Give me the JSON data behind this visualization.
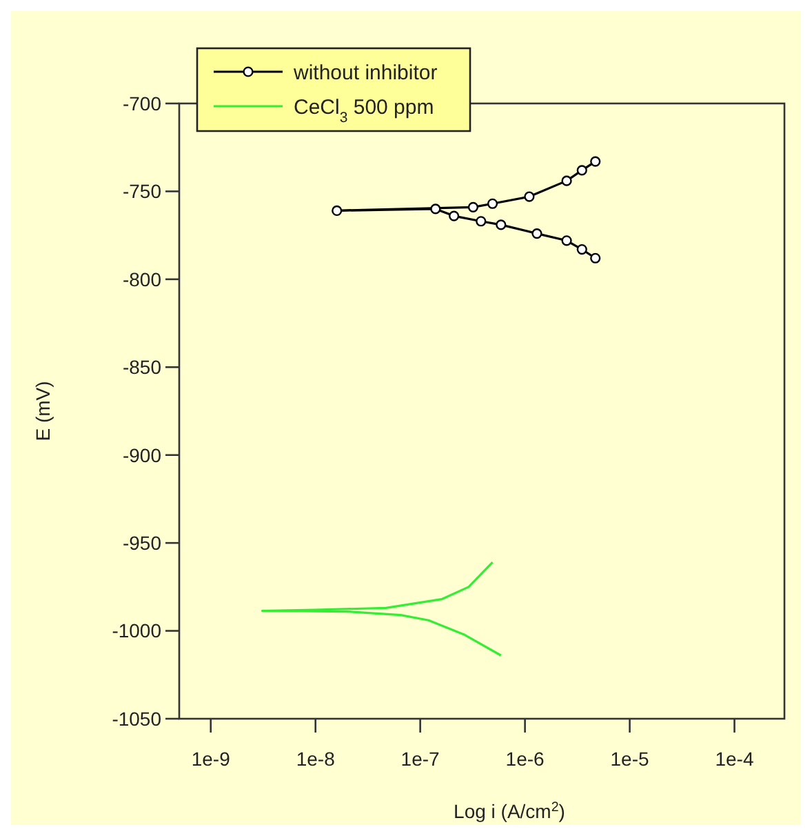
{
  "chart_data": {
    "type": "line",
    "xlabel": "Log i (A/cm$^{2}$)",
    "ylabel": "E (mV)",
    "log": "x",
    "xlim": [
      5e-10,
      0.0003
    ],
    "ylim": [
      -1050,
      -700
    ],
    "xticks": [
      {
        "value": 1e-09,
        "label": "1e-9"
      },
      {
        "value": 1e-08,
        "label": "1e-8"
      },
      {
        "value": 1e-07,
        "label": "1e-7"
      },
      {
        "value": 1e-06,
        "label": "1e-6"
      },
      {
        "value": 1e-05,
        "label": "1e-5"
      },
      {
        "value": 0.0001,
        "label": "1e-4"
      }
    ],
    "yticks": [
      -700,
      -750,
      -800,
      -850,
      -900,
      -950,
      -1000,
      -1050
    ],
    "grid": false,
    "legend": "top left",
    "series": [
      {
        "name": "without inhibitor",
        "color": "#000000",
        "marker": "circle",
        "x": [
          4.7e-06,
          3.5e-06,
          2.5e-06,
          1.3e-06,
          5.9e-07,
          3.8e-07,
          2.1e-07,
          1.4e-07,
          1.6e-08,
          3.2e-07,
          4.9e-07,
          1.1e-06,
          2.5e-06,
          3.5e-06,
          4.7e-06
        ],
        "values": [
          -788,
          -783,
          -778,
          -774,
          -769,
          -767,
          -764,
          -760,
          -761,
          -759,
          -757,
          -753,
          -744,
          -738,
          -733
        ]
      },
      {
        "name": "CeCl$_{3}$ 500 ppm",
        "color": "#33ee33",
        "marker": "none",
        "x": [
          5.9e-07,
          2.6e-07,
          1.2e-07,
          6.5e-08,
          2e-08,
          3.1e-09,
          1e-08,
          4.7e-08,
          1.6e-07,
          2.9e-07,
          4.9e-07
        ],
        "values": [
          -1014,
          -1002,
          -994,
          -991,
          -989,
          -988.6,
          -988,
          -987,
          -982,
          -975,
          -961
        ]
      }
    ]
  }
}
